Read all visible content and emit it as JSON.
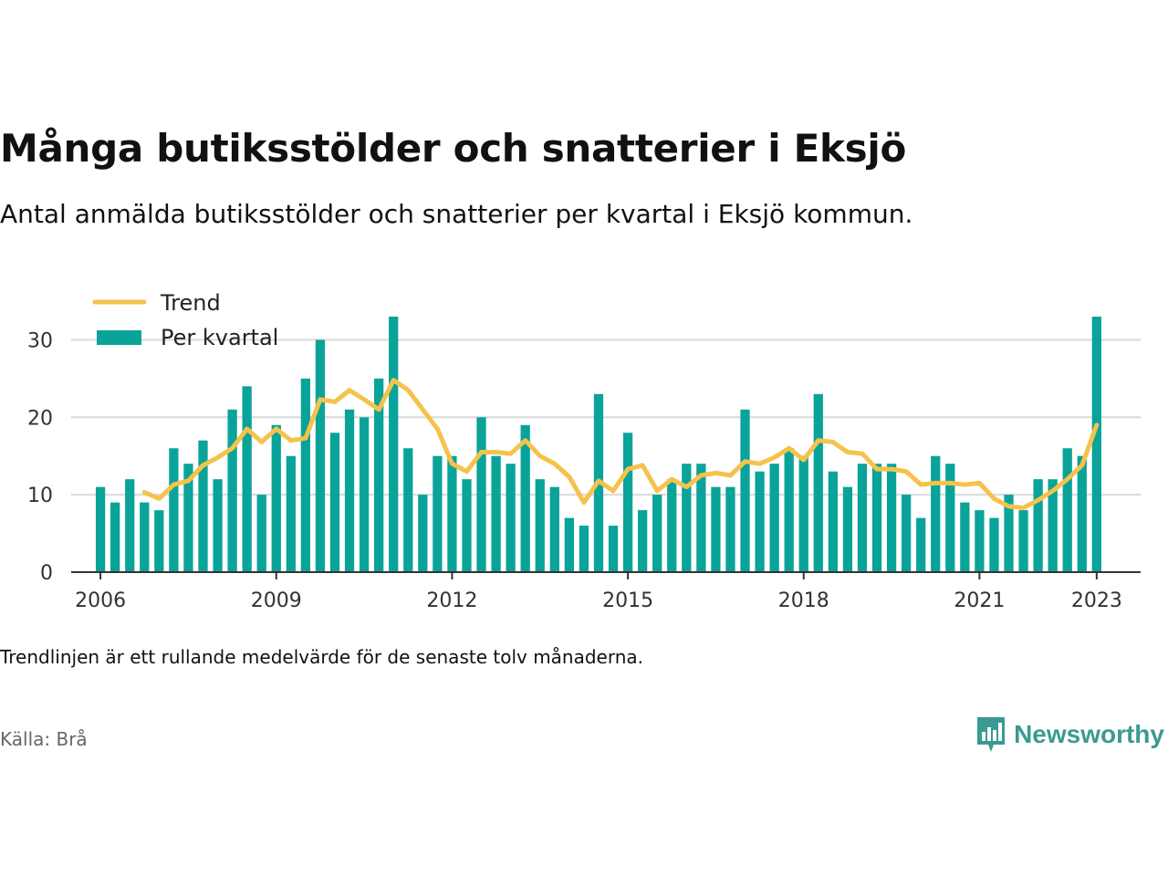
{
  "title": "Många butiksstölder och snatterier i Eksjö",
  "subtitle": "Antal anmälda butiksstölder och snatterier per kvartal i Eksjö kommun.",
  "footnote": "Trendlinjen är ett rullande medelvärde för de senaste tolv månaderna.",
  "source": "Källa: Brå",
  "brand": {
    "name": "Newsworthy",
    "icon": "newsworthy-logo-icon",
    "color": "#3a9a91"
  },
  "colors": {
    "bar": "#0aa39a",
    "trend": "#f5c24b",
    "grid": "#d9d9d9",
    "axis": "#333333"
  },
  "chart_data": {
    "type": "bar",
    "x_start": "2006 Q1",
    "xlim": [
      "2005 Q3",
      "2023 Q4"
    ],
    "ylim": [
      0,
      35
    ],
    "grid": "horizontal",
    "legend": "top-left",
    "x_ticks": [
      "2006",
      "2009",
      "2012",
      "2015",
      "2018",
      "2021",
      "2023"
    ],
    "x_tick_quarters": [
      "2006 Q1",
      "2009 Q1",
      "2012 Q1",
      "2015 Q1",
      "2018 Q1",
      "2021 Q1",
      "2023 Q1"
    ],
    "y_ticks": [
      0,
      10,
      20,
      30
    ],
    "series": [
      {
        "name": "Per kvartal",
        "type": "bar",
        "values": [
          11,
          9,
          12,
          9,
          8,
          16,
          14,
          17,
          12,
          21,
          24,
          10,
          19,
          15,
          25,
          30,
          18,
          21,
          20,
          25,
          33,
          16,
          10,
          15,
          15,
          12,
          20,
          15,
          14,
          19,
          12,
          11,
          7,
          6,
          23,
          6,
          18,
          8,
          10,
          12,
          14,
          14,
          11,
          11,
          21,
          13,
          14,
          16,
          15,
          23,
          13,
          11,
          14,
          14,
          14,
          10,
          7,
          15,
          14,
          9,
          8,
          7,
          10,
          8,
          12,
          12,
          16,
          15,
          33
        ]
      },
      {
        "name": "Trend",
        "type": "line",
        "start": "2006 Q4",
        "values": [
          10.3,
          9.5,
          11.3,
          11.8,
          13.8,
          14.8,
          16,
          18.5,
          16.8,
          18.5,
          17,
          17.3,
          22.3,
          22,
          23.5,
          22.3,
          21,
          24.8,
          23.5,
          21,
          18.5,
          14,
          13,
          15.5,
          15.5,
          15.3,
          17,
          15,
          14,
          12.3,
          9,
          11.8,
          10.5,
          13.3,
          13.8,
          10.5,
          12,
          11,
          12.5,
          12.8,
          12.5,
          14.3,
          14,
          14.8,
          16,
          14.5,
          17,
          16.8,
          15.5,
          15.3,
          13.3,
          13.3,
          13,
          11.3,
          11.5,
          11.5,
          11.3,
          11.5,
          9.5,
          8.5,
          8.3,
          9.3,
          10.5,
          12,
          13.8,
          19
        ]
      }
    ]
  }
}
